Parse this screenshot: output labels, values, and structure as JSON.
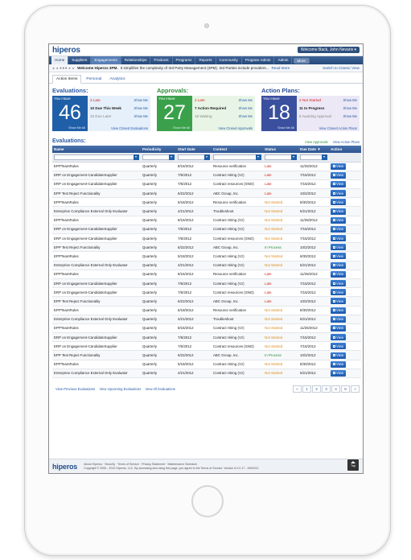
{
  "app": {
    "logo_main": "hiperos",
    "welcome": "Welcome Back,",
    "user": "John Nevaris"
  },
  "nav": [
    {
      "label": "Home",
      "state": "active"
    },
    {
      "label": "Suppliers",
      "state": ""
    },
    {
      "label": "Engagements",
      "state": "sel"
    },
    {
      "label": "Relationships",
      "state": ""
    },
    {
      "label": "Products",
      "state": ""
    },
    {
      "label": "Programs",
      "state": ""
    },
    {
      "label": "Reports",
      "state": ""
    },
    {
      "label": "Community",
      "state": ""
    },
    {
      "label": "Program Admin",
      "state": ""
    },
    {
      "label": "Admin",
      "state": ""
    },
    {
      "label": "More",
      "state": "more"
    }
  ],
  "ticker": {
    "arrows": "◂ ◂ ●●● ▸ ▸",
    "text_bold": "Welcome Hiperos 3PM.",
    "text": "It simplifies the complexity of 3rd Party Management (3PM). 3rd Parties include providers...",
    "read_more": "Read More",
    "switch": "Switch to Classic View"
  },
  "subtabs": [
    "Action Items",
    "Personal",
    "Analytics"
  ],
  "summary": {
    "evaluations": {
      "title": "Evaluations:",
      "you_have": "You Have",
      "count": "46",
      "show_all": "Show Me All",
      "lines": [
        {
          "text": "3 Late",
          "cls": "red",
          "link": "Show Me"
        },
        {
          "text": "10 Due This Week",
          "cls": "bld",
          "link": "Show Me"
        },
        {
          "text": "33 Due Later",
          "cls": "gry",
          "link": "Show Me"
        }
      ],
      "view_closed": "View Closed Evaluations"
    },
    "approvals": {
      "title": "Approvals:",
      "you_have": "You Have",
      "count": "27",
      "show_all": "Show Me All",
      "lines": [
        {
          "text": "2 Late",
          "cls": "red",
          "link": "Show Me"
        },
        {
          "text": "7 Action Required",
          "cls": "bld",
          "link": "Show Me"
        },
        {
          "text": "18 Waiting",
          "cls": "gry",
          "link": "Show Me"
        }
      ],
      "view_closed": "View Closed Approvals"
    },
    "action_plans": {
      "title": "Action Plans:",
      "you_have": "You Have",
      "count": "18",
      "show_all": "Show Me All",
      "lines": [
        {
          "text": "2 Not Started",
          "cls": "red",
          "link": "Show Me"
        },
        {
          "text": "11 In Progress",
          "cls": "bld",
          "link": "Show Me"
        },
        {
          "text": "5 Awaiting Approval",
          "cls": "gry",
          "link": "Show Me"
        }
      ],
      "view_closed": "View Closed Action Plans"
    }
  },
  "evaluations_table": {
    "title": "Evaluations:",
    "links": [
      "View Approvals",
      "View Action Plans"
    ],
    "columns": [
      "Name",
      "Periodicity",
      "Start Date",
      "Context",
      "Status",
      "Due Date ▼",
      "Action"
    ],
    "view_label": "View",
    "rows": [
      [
        "EPPTeamRules",
        "Quarterly",
        "8/16/2012",
        "Resource verification",
        "Late",
        "11/26/2012"
      ],
      [
        "ERP on Engagement-CandidateSupplier",
        "Quarterly",
        "7/6/2012",
        "Contract Hiring (Vz)",
        "Late",
        "7/15/2012"
      ],
      [
        "ERP on Engagement-CandidateSupplier",
        "Quarterly",
        "7/6/2012",
        "Contract resources (SNO)",
        "Late",
        "7/15/2012"
      ],
      [
        "EPP Test Reject Functionality",
        "Quarterly",
        "6/22/2012",
        "ABC Group, Inc.",
        "Late",
        "10/2/2012"
      ],
      [
        "EPPTeamRules",
        "Quarterly",
        "5/18/2012",
        "Resource verification",
        "Not Started",
        "8/30/2012"
      ],
      [
        "Enterprise Compliance External Only Evaluator",
        "Quarterly",
        "4/21/2012",
        "Troubleshoot",
        "Not Started",
        "5/21/2012"
      ],
      [
        "EPPTeamRules",
        "Quarterly",
        "8/16/2012",
        "Contract Hiring (Vz)",
        "Not Started",
        "11/26/2012"
      ],
      [
        "ERP on Engagement-CandidateSupplier",
        "Quarterly",
        "7/6/2012",
        "Contract Hiring (Vz)",
        "Not Started",
        "7/15/2012"
      ],
      [
        "ERP on Engagement-CandidateSupplier",
        "Quarterly",
        "7/6/2012",
        "Contract resources (SNO)",
        "Not Started",
        "7/15/2012"
      ],
      [
        "EPP Test Reject Functionality",
        "Quarterly",
        "6/22/2012",
        "ABC Group, Inc.",
        "In Process",
        "10/2/2012"
      ],
      [
        "EPPTeamRules",
        "Quarterly",
        "5/18/2012",
        "Contract Hiring (Vz)",
        "Not Started",
        "8/30/2012"
      ],
      [
        "Enterprise Compliance External Only Evaluator",
        "Quarterly",
        "4/21/2012",
        "Contract Hiring (Vz)",
        "Not Started",
        "5/21/2012"
      ],
      [
        "EPPTeamRules",
        "Quarterly",
        "8/16/2012",
        "Resource verification",
        "Late",
        "11/26/2012"
      ],
      [
        "ERP on Engagement-CandidateSupplier",
        "Quarterly",
        "7/6/2012",
        "Contract Hiring (Vz)",
        "Late",
        "7/15/2012"
      ],
      [
        "ERP on Engagement-CandidateSupplier",
        "Quarterly",
        "7/6/2012",
        "Contract resources (SNO)",
        "Late",
        "7/15/2012"
      ],
      [
        "EPP Test Reject Functionality",
        "Quarterly",
        "6/22/2012",
        "ABC Group, Inc.",
        "Late",
        "10/2/2012"
      ],
      [
        "EPPTeamRules",
        "Quarterly",
        "5/18/2012",
        "Resource verification",
        "Not Started",
        "8/30/2012"
      ],
      [
        "Enterprise Compliance External Only Evaluator",
        "Quarterly",
        "4/21/2012",
        "Troubleshoot",
        "Not Started",
        "5/21/2012"
      ],
      [
        "EPPTeamRules",
        "Quarterly",
        "8/16/2012",
        "Contract Hiring (Vz)",
        "Not Started",
        "11/26/2012"
      ],
      [
        "ERP on Engagement-CandidateSupplier",
        "Quarterly",
        "7/6/2012",
        "Contract Hiring (Vz)",
        "Not Started",
        "7/15/2012"
      ],
      [
        "ERP on Engagement-CandidateSupplier",
        "Quarterly",
        "7/6/2012",
        "Contract resources (SNO)",
        "Not Started",
        "7/15/2012"
      ],
      [
        "EPP Test Reject Functionality",
        "Quarterly",
        "6/22/2012",
        "ABC Group, Inc.",
        "In Process",
        "10/2/2012"
      ],
      [
        "EPPTeamRules",
        "Quarterly",
        "5/18/2012",
        "Contract Hiring (Vz)",
        "Not Started",
        "8/30/2012"
      ],
      [
        "Enterprise Compliance External Only Evaluator",
        "Quarterly",
        "4/21/2012",
        "Contract Hiring (Vz)",
        "Not Started",
        "5/21/2012"
      ]
    ]
  },
  "footer": {
    "links": [
      "View Previous Evaluations",
      "View Upcoming Evaluations",
      "View All Evaluations"
    ],
    "pager": [
      "«",
      "1",
      "2",
      "3",
      "4",
      "5",
      "»"
    ]
  },
  "bottom": {
    "copy1": "About Hiperos · Security · Terms of Service · Privacy Statement · Maintenance Schedule",
    "copy2": "Copyright © 2006 - 2012 Hiperos, LLC. By accessing and using this page, you agree to the Terms of Service. Version 6.0.0.17 - 9/5/2012",
    "top": "Top"
  }
}
